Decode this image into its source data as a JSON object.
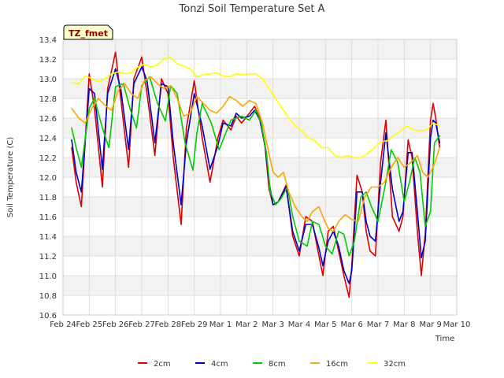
{
  "chart_data": {
    "type": "line",
    "title": "Tonzi Soil Temperature Set A",
    "xlabel": "Time",
    "ylabel": "Soil Temperature (C)",
    "badge": "TZ_fmet",
    "ylim": [
      10.6,
      13.4
    ],
    "xlim": [
      0,
      15
    ],
    "yticks": [
      10.6,
      10.8,
      11.0,
      11.2,
      11.4,
      11.6,
      11.8,
      12.0,
      12.2,
      12.4,
      12.6,
      12.8,
      13.0,
      13.2,
      13.4
    ],
    "xticks": [
      0,
      1,
      2,
      3,
      4,
      5,
      6,
      7,
      8,
      9,
      10,
      11,
      12,
      13,
      14,
      15
    ],
    "xtick_labels": [
      "Feb 24",
      "Feb 25",
      "Feb 26",
      "Feb 27",
      "Feb 28",
      "Feb 29",
      "Mar 1",
      "Mar 2",
      "Mar 3",
      "Mar 4",
      "Mar 5",
      "Mar 6",
      "Mar 7",
      "Mar 8",
      "Mar 9",
      "Mar 10"
    ],
    "series": [
      {
        "name": "2cm",
        "color": "#dd0000",
        "x": [
          0.33,
          0.5,
          0.7,
          1.0,
          1.2,
          1.5,
          1.7,
          2.0,
          2.2,
          2.5,
          2.7,
          3.0,
          3.2,
          3.5,
          3.75,
          4.0,
          4.2,
          4.5,
          4.7,
          5.0,
          5.3,
          5.6,
          5.9,
          6.1,
          6.4,
          6.6,
          6.8,
          7.1,
          7.3,
          7.5,
          7.7,
          7.85,
          8.0,
          8.2,
          8.5,
          8.75,
          9.0,
          9.25,
          9.5,
          9.75,
          9.9,
          10.1,
          10.3,
          10.5,
          10.7,
          10.9,
          11.0,
          11.2,
          11.4,
          11.55,
          11.7,
          11.9,
          12.1,
          12.3,
          12.55,
          12.8,
          12.95,
          13.15,
          13.3,
          13.5,
          13.65,
          13.8,
          14.0,
          14.1,
          14.2,
          14.35
        ],
        "values": [
          12.3,
          11.95,
          11.7,
          13.05,
          12.7,
          11.9,
          12.9,
          13.27,
          12.8,
          12.1,
          13.0,
          13.22,
          12.85,
          12.22,
          13.0,
          12.85,
          12.2,
          11.52,
          12.5,
          12.98,
          12.4,
          11.95,
          12.4,
          12.58,
          12.48,
          12.62,
          12.55,
          12.65,
          12.72,
          12.6,
          12.3,
          11.88,
          11.72,
          11.75,
          11.92,
          11.4,
          11.2,
          11.6,
          11.55,
          11.2,
          11.0,
          11.45,
          11.5,
          11.25,
          11.0,
          10.78,
          11.1,
          12.02,
          11.85,
          11.45,
          11.25,
          11.2,
          12.15,
          12.58,
          11.6,
          11.45,
          11.6,
          12.38,
          12.2,
          11.45,
          11.0,
          11.42,
          12.58,
          12.75,
          12.6,
          12.3
        ]
      },
      {
        "name": "4cm",
        "color": "#0000cc",
        "x": [
          0.33,
          0.5,
          0.7,
          1.0,
          1.2,
          1.5,
          1.7,
          2.0,
          2.2,
          2.5,
          2.7,
          3.0,
          3.2,
          3.5,
          3.75,
          4.0,
          4.2,
          4.5,
          4.7,
          5.0,
          5.3,
          5.6,
          5.9,
          6.1,
          6.4,
          6.6,
          6.8,
          7.1,
          7.3,
          7.5,
          7.7,
          7.85,
          8.0,
          8.2,
          8.5,
          8.75,
          9.0,
          9.25,
          9.5,
          9.75,
          9.9,
          10.1,
          10.3,
          10.5,
          10.7,
          10.9,
          11.0,
          11.2,
          11.4,
          11.55,
          11.7,
          11.9,
          12.1,
          12.3,
          12.55,
          12.8,
          12.95,
          13.15,
          13.3,
          13.5,
          13.65,
          13.8,
          14.0,
          14.1,
          14.2,
          14.35
        ],
        "values": [
          12.38,
          12.05,
          11.85,
          12.9,
          12.85,
          12.08,
          12.85,
          13.1,
          12.9,
          12.28,
          12.95,
          13.12,
          12.98,
          12.35,
          12.95,
          12.92,
          12.35,
          11.72,
          12.35,
          12.85,
          12.52,
          12.08,
          12.32,
          12.55,
          12.52,
          12.65,
          12.6,
          12.62,
          12.68,
          12.58,
          12.32,
          11.95,
          11.72,
          11.75,
          11.9,
          11.45,
          11.25,
          11.52,
          11.52,
          11.28,
          11.1,
          11.35,
          11.45,
          11.3,
          11.05,
          10.92,
          11.05,
          11.85,
          11.85,
          11.55,
          11.4,
          11.35,
          11.95,
          12.45,
          11.88,
          11.55,
          11.65,
          12.25,
          12.25,
          11.65,
          11.18,
          11.35,
          12.4,
          12.58,
          12.55,
          12.35
        ]
      },
      {
        "name": "8cm",
        "color": "#00cc00",
        "x": [
          0.33,
          0.5,
          0.7,
          1.0,
          1.2,
          1.5,
          1.75,
          2.0,
          2.3,
          2.55,
          2.8,
          3.0,
          3.3,
          3.6,
          3.9,
          4.1,
          4.35,
          4.65,
          4.95,
          5.1,
          5.3,
          5.65,
          5.95,
          6.2,
          6.4,
          6.6,
          6.8,
          7.1,
          7.35,
          7.55,
          7.75,
          7.9,
          8.1,
          8.3,
          8.55,
          8.75,
          9.0,
          9.3,
          9.5,
          9.75,
          10.0,
          10.25,
          10.5,
          10.7,
          10.9,
          11.1,
          11.35,
          11.55,
          11.75,
          12.0,
          12.3,
          12.5,
          12.75,
          13.0,
          13.2,
          13.4,
          13.6,
          13.8,
          14.0,
          14.15,
          14.35
        ],
        "values": [
          12.5,
          12.3,
          12.1,
          12.7,
          12.8,
          12.5,
          12.3,
          12.92,
          12.95,
          12.7,
          12.5,
          12.93,
          13.02,
          12.75,
          12.57,
          12.93,
          12.85,
          12.35,
          12.07,
          12.45,
          12.75,
          12.55,
          12.28,
          12.45,
          12.58,
          12.6,
          12.62,
          12.58,
          12.68,
          12.55,
          12.25,
          11.85,
          11.72,
          11.78,
          11.9,
          11.6,
          11.35,
          11.3,
          11.55,
          11.52,
          11.3,
          11.22,
          11.45,
          11.42,
          11.2,
          11.35,
          11.8,
          11.85,
          11.7,
          11.55,
          11.95,
          12.28,
          12.15,
          11.75,
          11.95,
          12.2,
          12.05,
          11.5,
          11.65,
          12.35,
          12.42
        ]
      },
      {
        "name": "16cm",
        "color": "#ffa500",
        "x": [
          0.33,
          0.6,
          0.85,
          1.1,
          1.35,
          1.6,
          1.85,
          2.1,
          2.35,
          2.6,
          2.85,
          3.1,
          3.35,
          3.6,
          3.85,
          4.1,
          4.35,
          4.6,
          4.85,
          5.1,
          5.35,
          5.6,
          5.85,
          6.1,
          6.35,
          6.6,
          6.85,
          7.1,
          7.35,
          7.6,
          7.8,
          8.0,
          8.2,
          8.4,
          8.6,
          8.85,
          9.1,
          9.3,
          9.5,
          9.75,
          9.9,
          10.1,
          10.3,
          10.5,
          10.75,
          11.0,
          11.25,
          11.5,
          11.75,
          12.0,
          12.25,
          12.5,
          12.75,
          13.0,
          13.25,
          13.5,
          13.7,
          13.9,
          14.1,
          14.35
        ],
        "values": [
          12.7,
          12.6,
          12.55,
          12.7,
          12.8,
          12.73,
          12.68,
          12.88,
          12.95,
          12.85,
          12.8,
          12.98,
          13.02,
          12.95,
          12.9,
          12.93,
          12.8,
          12.62,
          12.65,
          12.82,
          12.75,
          12.68,
          12.65,
          12.72,
          12.82,
          12.78,
          12.72,
          12.78,
          12.75,
          12.55,
          12.3,
          12.05,
          12.0,
          12.05,
          11.85,
          11.7,
          11.6,
          11.55,
          11.65,
          11.7,
          11.6,
          11.48,
          11.45,
          11.55,
          11.62,
          11.57,
          11.55,
          11.8,
          11.9,
          11.9,
          11.95,
          12.1,
          12.2,
          12.1,
          12.15,
          12.22,
          12.05,
          12.0,
          12.1,
          12.3
        ]
      },
      {
        "name": "32cm",
        "color": "#ffff00",
        "x": [
          0.33,
          0.6,
          0.85,
          1.1,
          1.35,
          1.6,
          1.85,
          2.1,
          2.35,
          2.6,
          2.85,
          3.1,
          3.35,
          3.6,
          3.85,
          4.1,
          4.35,
          4.6,
          4.85,
          5.1,
          5.35,
          5.6,
          5.85,
          6.1,
          6.35,
          6.6,
          6.85,
          7.1,
          7.35,
          7.6,
          7.85,
          8.1,
          8.35,
          8.6,
          8.85,
          9.1,
          9.35,
          9.6,
          9.85,
          10.1,
          10.35,
          10.6,
          10.85,
          11.1,
          11.35,
          11.6,
          11.85,
          12.1,
          12.35,
          12.6,
          12.85,
          13.1,
          13.35,
          13.6,
          13.85,
          14.1,
          14.35
        ],
        "values": [
          12.96,
          12.95,
          13.03,
          13.0,
          12.97,
          13.0,
          13.05,
          13.07,
          13.05,
          13.06,
          13.12,
          13.15,
          13.12,
          13.14,
          13.2,
          13.22,
          13.15,
          13.13,
          13.1,
          13.02,
          13.04,
          13.05,
          13.06,
          13.03,
          13.02,
          13.05,
          13.04,
          13.05,
          13.05,
          13.0,
          12.9,
          12.8,
          12.7,
          12.6,
          12.52,
          12.47,
          12.4,
          12.37,
          12.3,
          12.3,
          12.22,
          12.2,
          12.22,
          12.2,
          12.2,
          12.24,
          12.3,
          12.36,
          12.37,
          12.42,
          12.47,
          12.52,
          12.48,
          12.47,
          12.48,
          12.55,
          12.52
        ]
      }
    ]
  }
}
